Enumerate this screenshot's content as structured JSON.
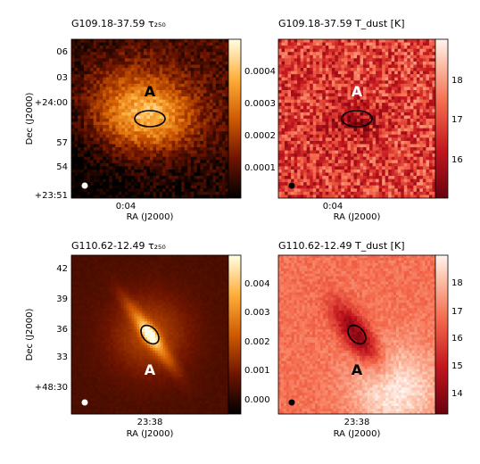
{
  "figure": {
    "panels": [
      {
        "title": "G109.18-37.59 τ₂₅₀",
        "quantity": "tau"
      },
      {
        "title": "G109.18-37.59 T_dust [K]",
        "quantity": "tdust"
      },
      {
        "title": "G110.62-12.49 τ₂₅₀",
        "quantity": "tau"
      },
      {
        "title": "G110.62-12.49 T_dust [K]",
        "quantity": "tdust"
      }
    ]
  },
  "chart_data": [
    {
      "type": "heatmap",
      "title": "G109.18-37.59 τ₂₅₀",
      "xlabel": "RA (J2000)",
      "ylabel": "Dec (J2000)",
      "x_ticks": [
        "0:04"
      ],
      "y_ticks": [
        "06",
        "03",
        "+24:00",
        "57",
        "54",
        "+23:51"
      ],
      "colorbar": {
        "ticks": [
          "0.0004",
          "0.0003",
          "0.0002",
          "0.0001"
        ],
        "range": [
          0.0,
          0.00048
        ],
        "colormap": "afmhot"
      },
      "annotation": "A",
      "ellipse": {
        "color": "#000000"
      },
      "beam": {
        "color": "#ffffff"
      }
    },
    {
      "type": "heatmap",
      "title": "G109.18-37.59 T_dust [K]",
      "xlabel": "RA (J2000)",
      "x_ticks": [
        "0:04"
      ],
      "colorbar": {
        "ticks": [
          "18",
          "17",
          "16"
        ],
        "range": [
          15.0,
          19.0
        ],
        "colormap": "reds"
      },
      "annotation": "A",
      "ellipse": {
        "color": "#000000"
      },
      "beam": {
        "color": "#000000"
      }
    },
    {
      "type": "heatmap",
      "title": "G110.62-12.49 τ₂₅₀",
      "xlabel": "RA (J2000)",
      "ylabel": "Dec (J2000)",
      "x_ticks": [
        "23:38"
      ],
      "y_ticks": [
        "42",
        "39",
        "36",
        "33",
        "+48:30"
      ],
      "colorbar": {
        "ticks": [
          "0.004",
          "0.003",
          "0.002",
          "0.001",
          "0.000"
        ],
        "range": [
          -0.0005,
          0.005
        ],
        "colormap": "afmhot"
      },
      "annotation": "A",
      "ellipse": {
        "color": "#000000"
      },
      "beam": {
        "color": "#ffffff"
      }
    },
    {
      "type": "heatmap",
      "title": "G110.62-12.49 T_dust [K]",
      "xlabel": "RA (J2000)",
      "x_ticks": [
        "23:38"
      ],
      "colorbar": {
        "ticks": [
          "18",
          "17",
          "16",
          "15",
          "14"
        ],
        "range": [
          13.0,
          19.0
        ],
        "colormap": "reds"
      },
      "annotation": "A",
      "ellipse": {
        "color": "#000000"
      },
      "beam": {
        "color": "#000000"
      }
    }
  ]
}
